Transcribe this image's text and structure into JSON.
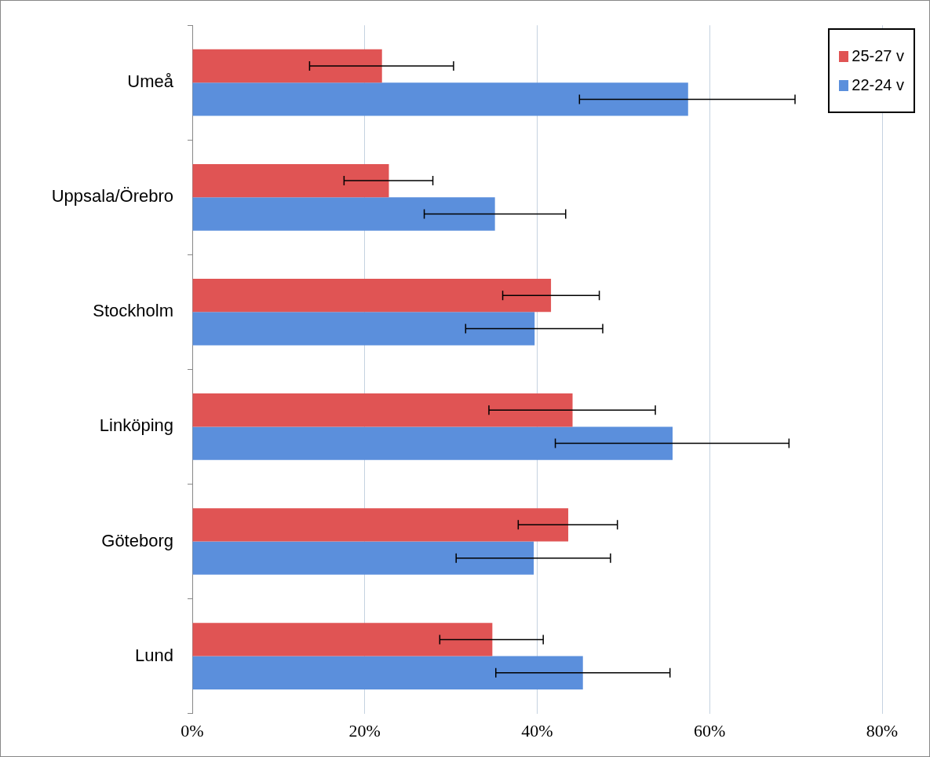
{
  "chart_data": {
    "type": "bar",
    "orientation": "horizontal",
    "categories": [
      "Umeå",
      "Uppsala/Örebro",
      "Stockholm",
      "Linköping",
      "Göteborg",
      "Lund"
    ],
    "series": [
      {
        "name": "25-27 v",
        "color": "#e05454",
        "values": [
          22.0,
          22.8,
          41.6,
          44.1,
          43.6,
          34.8
        ],
        "errors": [
          [
            13.6,
            30.3
          ],
          [
            17.6,
            27.9
          ],
          [
            36.0,
            47.2
          ],
          [
            34.4,
            53.7
          ],
          [
            37.8,
            49.3
          ],
          [
            28.7,
            40.7
          ]
        ]
      },
      {
        "name": "22-24 v",
        "color": "#5b8fdc",
        "values": [
          57.5,
          35.1,
          39.7,
          55.7,
          39.6,
          45.3
        ],
        "errors": [
          [
            44.9,
            69.9
          ],
          [
            26.9,
            43.3
          ],
          [
            31.7,
            47.6
          ],
          [
            42.1,
            69.2
          ],
          [
            30.6,
            48.5
          ],
          [
            35.2,
            55.4
          ]
        ]
      }
    ],
    "xlim": [
      0,
      80
    ],
    "xticks": [
      {
        "value": 0,
        "label": "0%"
      },
      {
        "value": 20,
        "label": "20%"
      },
      {
        "value": 40,
        "label": "40%"
      },
      {
        "value": 60,
        "label": "60%"
      },
      {
        "value": 80,
        "label": "80%"
      }
    ],
    "grid": "x",
    "legend": "top right"
  }
}
